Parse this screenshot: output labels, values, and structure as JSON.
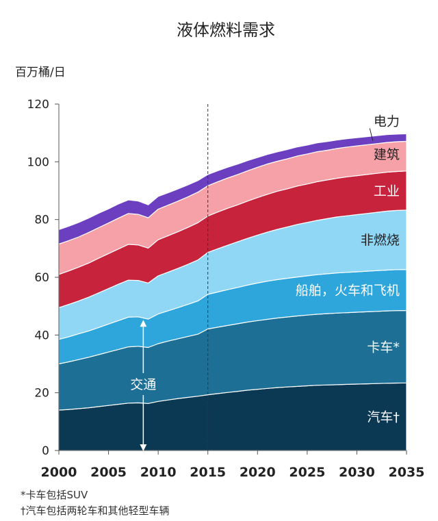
{
  "chart_data": {
    "type": "area",
    "stacked": true,
    "title": "液体燃料需求",
    "ylabel": "百万桶/日",
    "ylim": [
      0,
      120
    ],
    "xlim": [
      2000,
      2035
    ],
    "yticks": [
      0,
      20,
      40,
      60,
      80,
      100,
      120
    ],
    "xticks": [
      2000,
      2005,
      2010,
      2015,
      2020,
      2025,
      2030,
      2035
    ],
    "projection_start": 2015,
    "x": [
      2000,
      2001,
      2002,
      2003,
      2004,
      2005,
      2006,
      2007,
      2008,
      2009,
      2010,
      2011,
      2012,
      2013,
      2014,
      2015,
      2016,
      2017,
      2018,
      2019,
      2020,
      2021,
      2022,
      2023,
      2024,
      2025,
      2026,
      2027,
      2028,
      2029,
      2030,
      2031,
      2032,
      2033,
      2034,
      2035
    ],
    "series": [
      {
        "name": "汽车†",
        "color": "#0b3954",
        "values": [
          14,
          14.2,
          14.5,
          14.8,
          15.2,
          15.6,
          16,
          16.4,
          16.5,
          16.3,
          17,
          17.5,
          18,
          18.4,
          18.8,
          19.3,
          19.7,
          20.1,
          20.5,
          20.9,
          21.2,
          21.5,
          21.8,
          22,
          22.2,
          22.4,
          22.6,
          22.7,
          22.8,
          22.9,
          23,
          23.1,
          23.2,
          23.3,
          23.35,
          23.4
        ]
      },
      {
        "name": "卡车*",
        "color": "#1d6f96",
        "values": [
          16,
          16.5,
          17,
          17.5,
          18,
          18.5,
          19,
          19.5,
          19.6,
          19.4,
          20,
          20.4,
          20.7,
          21.1,
          21.5,
          22.8,
          23,
          23.2,
          23.4,
          23.6,
          23.8,
          23.95,
          24.1,
          24.25,
          24.4,
          24.5,
          24.6,
          24.7,
          24.8,
          24.85,
          24.9,
          24.95,
          25,
          25.05,
          25.1,
          25.1
        ]
      },
      {
        "name": "船舶，火车和飞机",
        "color": "#2ea6dc",
        "values": [
          8.5,
          8.7,
          8.9,
          9.1,
          9.4,
          9.7,
          10,
          10.3,
          10.2,
          9.8,
          10.3,
          10.5,
          10.8,
          11.1,
          11.5,
          12,
          12.2,
          12.4,
          12.6,
          12.8,
          13,
          13.2,
          13.3,
          13.4,
          13.5,
          13.6,
          13.7,
          13.8,
          13.9,
          13.95,
          14,
          14.05,
          14.1,
          14.15,
          14.2,
          14.2
        ]
      },
      {
        "name": "非燃烧",
        "color": "#8fd7f5",
        "values": [
          11,
          11.2,
          11.4,
          11.7,
          12,
          12.3,
          12.6,
          12.8,
          12.6,
          12.5,
          13.2,
          13.4,
          13.6,
          13.9,
          14.2,
          14.5,
          15,
          15.4,
          15.8,
          16.2,
          16.6,
          17,
          17.4,
          17.8,
          18.2,
          18.5,
          18.8,
          19.1,
          19.4,
          19.6,
          19.8,
          20,
          20.2,
          20.4,
          20.5,
          20.6
        ]
      },
      {
        "name": "工业",
        "color": "#c8233c",
        "values": [
          11.5,
          11.6,
          11.7,
          11.8,
          12,
          12.1,
          12.2,
          12.4,
          12.3,
          12.1,
          12.5,
          12.6,
          12.7,
          12.8,
          12.9,
          12.6,
          12.7,
          12.8,
          12.8,
          12.9,
          13,
          13.1,
          13.2,
          13.2,
          13.3,
          13.3,
          13.4,
          13.4,
          13.4,
          13.5,
          13.5,
          13.5,
          13.5,
          13.5,
          13.5,
          13.5
        ]
      },
      {
        "name": "建筑",
        "color": "#f6a0a8",
        "values": [
          10.5,
          10.5,
          10.5,
          10.6,
          10.6,
          10.6,
          10.7,
          10.7,
          10.6,
          10.5,
          10.6,
          10.6,
          10.6,
          10.6,
          10.6,
          10.5,
          10.5,
          10.5,
          10.5,
          10.5,
          10.5,
          10.5,
          10.4,
          10.4,
          10.4,
          10.4,
          10.4,
          10.3,
          10.3,
          10.3,
          10.3,
          10.3,
          10.3,
          10.3,
          10.3,
          10.3
        ]
      },
      {
        "name": "电力",
        "color": "#6b3fbf",
        "values": [
          5,
          5,
          5,
          5,
          5,
          4.9,
          4.9,
          4.7,
          4.6,
          4.5,
          4.4,
          4.3,
          4.2,
          4.1,
          4,
          3.9,
          3.8,
          3.7,
          3.6,
          3.5,
          3.4,
          3.3,
          3.25,
          3.2,
          3.15,
          3.1,
          3.05,
          3,
          2.95,
          2.9,
          2.85,
          2.8,
          2.75,
          2.7,
          2.65,
          2.6
        ]
      }
    ],
    "annotation": {
      "text": "交通",
      "from": 0,
      "to": 45,
      "x": 2008.5,
      "label_y": 23
    }
  },
  "footnotes": [
    "*卡车包括SUV",
    "†汽车包括两轮车和其他轻型车辆"
  ]
}
